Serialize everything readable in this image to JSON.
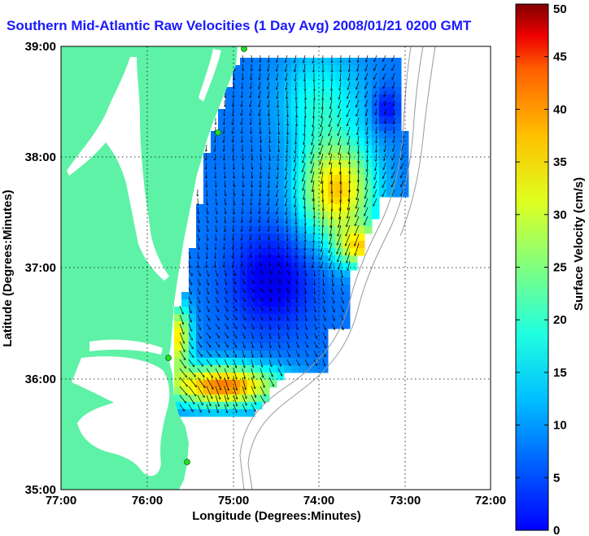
{
  "title": "Southern Mid-Atlantic Raw Velocities (1 Day Avg) 2008/01/21 0200 GMT",
  "colors": {
    "land": "#5ef2a6",
    "water": "#ffffff",
    "title": "#1a1aff",
    "site_marker": "#22dd22"
  },
  "map": {
    "x_axis": {
      "label": "Longitude (Degrees:Minutes)",
      "ticks": [
        "77:00",
        "76:00",
        "75:00",
        "74:00",
        "73:00",
        "72:00"
      ],
      "lon_range": [
        -77,
        -72
      ]
    },
    "y_axis": {
      "label": "Latitude (Degrees:Minutes)",
      "ticks": [
        "39:00",
        "38:00",
        "37:00",
        "36:00",
        "35:00"
      ],
      "lat_range": [
        35,
        39
      ]
    },
    "grid": "dotted"
  },
  "colorbar": {
    "label": "Surface Velocity (cm/s)",
    "ticks": [
      "0",
      "5",
      "10",
      "15",
      "20",
      "25",
      "30",
      "35",
      "40",
      "45",
      "50"
    ],
    "range": [
      0,
      50
    ],
    "colormap": "jet"
  }
}
